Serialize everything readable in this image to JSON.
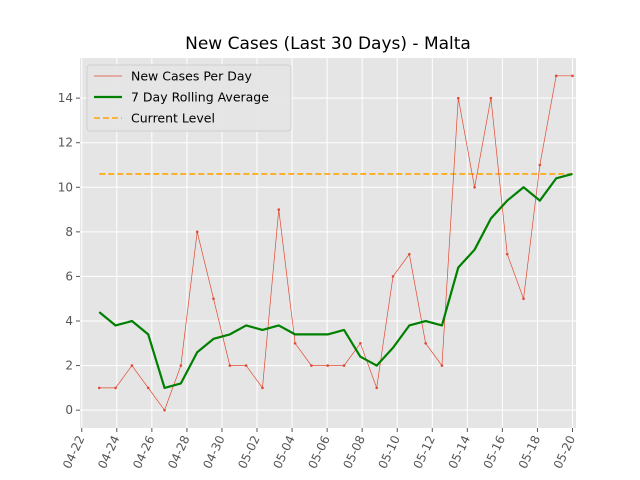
{
  "chart_data": {
    "type": "line",
    "title": "New Cases (Last 30 Days) - Malta",
    "xlabel": "",
    "ylabel": "",
    "ylim": [
      -0.8,
      15.8
    ],
    "yticks": [
      0,
      2,
      4,
      6,
      8,
      10,
      12,
      14
    ],
    "xticks": [
      "04-22",
      "04-24",
      "04-26",
      "04-28",
      "04-30",
      "05-02",
      "05-04",
      "05-06",
      "05-08",
      "05-10",
      "05-12",
      "05-14",
      "05-16",
      "05-18",
      "05-20"
    ],
    "x_start": "04-23",
    "days": 30,
    "grid": true,
    "legend_position": "upper-left",
    "series": [
      {
        "name": "New Cases Per Day",
        "color": "#e24a33",
        "style": "thin-line-with-dots",
        "values": [
          1,
          1,
          2,
          1,
          0,
          2,
          8,
          5,
          2,
          2,
          1,
          9,
          3,
          2,
          2,
          2,
          3,
          1,
          6,
          7,
          3,
          2,
          14,
          10,
          14,
          7,
          5,
          11,
          15,
          15
        ]
      },
      {
        "name": "7 Day Rolling Average",
        "color": "#008000",
        "style": "thick-line",
        "values": [
          4.4,
          3.8,
          4.0,
          3.4,
          1.0,
          1.2,
          2.6,
          3.2,
          3.4,
          3.8,
          3.6,
          3.8,
          3.4,
          3.4,
          3.4,
          3.6,
          2.4,
          2.0,
          2.8,
          3.8,
          4.0,
          3.8,
          6.4,
          7.2,
          8.6,
          9.4,
          10.0,
          9.4,
          10.4,
          10.6
        ]
      },
      {
        "name": "Current Level",
        "color": "#ffa500",
        "style": "dashed-line",
        "value": 10.6
      }
    ]
  }
}
